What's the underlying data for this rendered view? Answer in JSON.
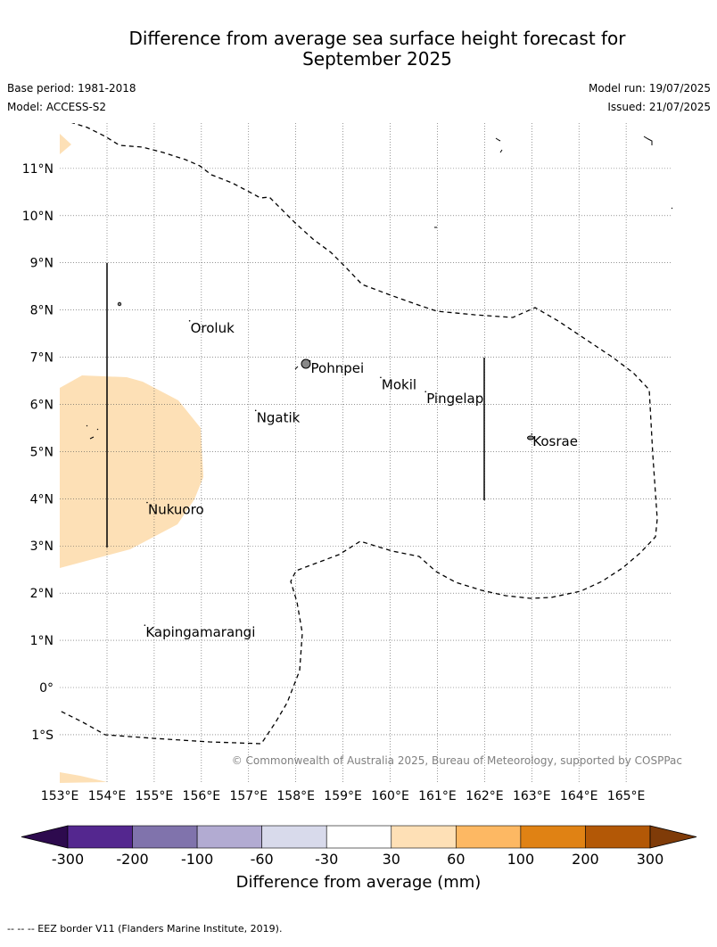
{
  "title_line1": "Difference from average sea surface height forecast for",
  "title_line2": "September 2025",
  "base_period": "Base period: 1981-2018",
  "model": "Model: ACCESS-S2",
  "model_run": "Model run: 19/07/2025",
  "issued": "Issued: 21/07/2025",
  "lat_labels": [
    "11°N",
    "10°N",
    "9°N",
    "8°N",
    "7°N",
    "6°N",
    "5°N",
    "4°N",
    "3°N",
    "2°N",
    "1°N",
    "0°",
    "1°S"
  ],
  "lon_labels": [
    "153°E",
    "154°E",
    "155°E",
    "156°E",
    "157°E",
    "158°E",
    "159°E",
    "160°E",
    "161°E",
    "162°E",
    "163°E",
    "164°E",
    "165°E"
  ],
  "places": [
    {
      "name": "Oroluk",
      "lon": 155.75,
      "lat": 7.6
    },
    {
      "name": "Pohnpei",
      "lon": 158.3,
      "lat": 6.75
    },
    {
      "name": "Mokil",
      "lon": 159.8,
      "lat": 6.4
    },
    {
      "name": "Pingelap",
      "lon": 160.75,
      "lat": 6.1
    },
    {
      "name": "Ngatik",
      "lon": 157.15,
      "lat": 5.7
    },
    {
      "name": "Kosrae",
      "lon": 163.0,
      "lat": 5.2
    },
    {
      "name": "Nukuoro",
      "lon": 154.85,
      "lat": 3.75
    },
    {
      "name": "Kapingamarangi",
      "lon": 154.8,
      "lat": 1.15
    }
  ],
  "copyright": "© Commonwealth of Australia 2025, Bureau of Meteorology, supported by COSPPac",
  "colorbar": {
    "ticks": [
      "-300",
      "-200",
      "-100",
      "-60",
      "-30",
      "30",
      "60",
      "100",
      "200",
      "300"
    ],
    "colors": [
      "#2d0a4e",
      "#54278f",
      "#8073ac",
      "#b2abd2",
      "#d8daeb",
      "#ffffff",
      "#fee0b6",
      "#fdb863",
      "#e08214",
      "#b35806",
      "#7f3b08"
    ],
    "label": "Difference from average (mm)"
  },
  "footnote": "--  --  -- EEZ border V11 (Flanders Marine Institute, 2019)."
}
